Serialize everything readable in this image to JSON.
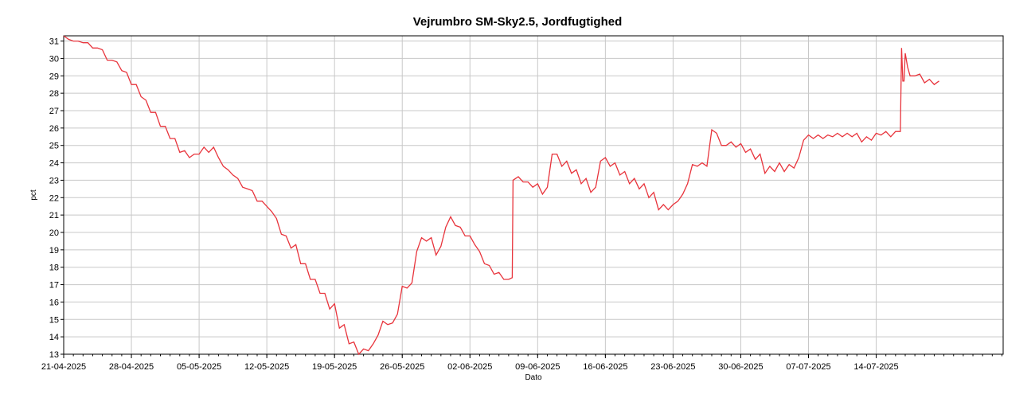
{
  "chart_data": {
    "type": "line",
    "title": "Vejrumbro SM-Sky2.5, Jordfugtighed",
    "xlabel": "Dato",
    "ylabel": "pct",
    "x_ticks": [
      "21-04-2025",
      "28-04-2025",
      "05-05-2025",
      "12-05-2025",
      "19-05-2025",
      "26-05-2025",
      "02-06-2025",
      "09-06-2025",
      "16-06-2025",
      "23-06-2025",
      "30-06-2025",
      "07-07-2025",
      "14-07-2025"
    ],
    "xlim": [
      "2025-04-21",
      "2025-07-27T03:00"
    ],
    "ylim": [
      13,
      31.3
    ],
    "y_ticks": [
      13,
      14,
      15,
      16,
      17,
      18,
      19,
      20,
      21,
      22,
      23,
      24,
      25,
      26,
      27,
      28,
      29,
      30,
      31
    ],
    "grid": true,
    "line_color": "#e8343c",
    "series": [
      {
        "points": [
          [
            "2025-04-21",
            31.3
          ],
          [
            "2025-04-21T12:00",
            31.1
          ],
          [
            "2025-04-22",
            31.0
          ],
          [
            "2025-04-22T12:00",
            31.0
          ],
          [
            "2025-04-23",
            30.9
          ],
          [
            "2025-04-23T12:00",
            30.9
          ],
          [
            "2025-04-24",
            30.6
          ],
          [
            "2025-04-24T12:00",
            30.6
          ],
          [
            "2025-04-25",
            30.5
          ],
          [
            "2025-04-25T12:00",
            29.9
          ],
          [
            "2025-04-26",
            29.9
          ],
          [
            "2025-04-26T12:00",
            29.8
          ],
          [
            "2025-04-27",
            29.3
          ],
          [
            "2025-04-27T12:00",
            29.2
          ],
          [
            "2025-04-28",
            28.5
          ],
          [
            "2025-04-28T12:00",
            28.5
          ],
          [
            "2025-04-29",
            27.8
          ],
          [
            "2025-04-29T12:00",
            27.6
          ],
          [
            "2025-04-30",
            26.9
          ],
          [
            "2025-04-30T12:00",
            26.9
          ],
          [
            "2025-05-01",
            26.1
          ],
          [
            "2025-05-01T12:00",
            26.1
          ],
          [
            "2025-05-02",
            25.4
          ],
          [
            "2025-05-02T12:00",
            25.4
          ],
          [
            "2025-05-03",
            24.6
          ],
          [
            "2025-05-03T12:00",
            24.7
          ],
          [
            "2025-05-04",
            24.3
          ],
          [
            "2025-05-04T12:00",
            24.5
          ],
          [
            "2025-05-05",
            24.5
          ],
          [
            "2025-05-05T12:00",
            24.9
          ],
          [
            "2025-05-06",
            24.6
          ],
          [
            "2025-05-06T12:00",
            24.9
          ],
          [
            "2025-05-07",
            24.3
          ],
          [
            "2025-05-07T12:00",
            23.8
          ],
          [
            "2025-05-08",
            23.6
          ],
          [
            "2025-05-08T12:00",
            23.3
          ],
          [
            "2025-05-09",
            23.1
          ],
          [
            "2025-05-09T12:00",
            22.6
          ],
          [
            "2025-05-10",
            22.5
          ],
          [
            "2025-05-10T12:00",
            22.4
          ],
          [
            "2025-05-11",
            21.8
          ],
          [
            "2025-05-11T12:00",
            21.8
          ],
          [
            "2025-05-12",
            21.5
          ],
          [
            "2025-05-12T12:00",
            21.2
          ],
          [
            "2025-05-13",
            20.8
          ],
          [
            "2025-05-13T12:00",
            19.9
          ],
          [
            "2025-05-14",
            19.8
          ],
          [
            "2025-05-14T12:00",
            19.1
          ],
          [
            "2025-05-15",
            19.3
          ],
          [
            "2025-05-15T12:00",
            18.2
          ],
          [
            "2025-05-16",
            18.2
          ],
          [
            "2025-05-16T12:00",
            17.3
          ],
          [
            "2025-05-17",
            17.3
          ],
          [
            "2025-05-17T12:00",
            16.5
          ],
          [
            "2025-05-18",
            16.5
          ],
          [
            "2025-05-18T12:00",
            15.6
          ],
          [
            "2025-05-19",
            15.9
          ],
          [
            "2025-05-19T12:00",
            14.5
          ],
          [
            "2025-05-20",
            14.7
          ],
          [
            "2025-05-20T12:00",
            13.6
          ],
          [
            "2025-05-21",
            13.7
          ],
          [
            "2025-05-21T12:00",
            13.0
          ],
          [
            "2025-05-22",
            13.3
          ],
          [
            "2025-05-22T12:00",
            13.2
          ],
          [
            "2025-05-23",
            13.6
          ],
          [
            "2025-05-23T12:00",
            14.1
          ],
          [
            "2025-05-24",
            14.9
          ],
          [
            "2025-05-24T12:00",
            14.7
          ],
          [
            "2025-05-25",
            14.8
          ],
          [
            "2025-05-25T12:00",
            15.3
          ],
          [
            "2025-05-26",
            16.9
          ],
          [
            "2025-05-26T12:00",
            16.8
          ],
          [
            "2025-05-27",
            17.1
          ],
          [
            "2025-05-27T12:00",
            18.9
          ],
          [
            "2025-05-28",
            19.7
          ],
          [
            "2025-05-28T12:00",
            19.5
          ],
          [
            "2025-05-29",
            19.7
          ],
          [
            "2025-05-29T12:00",
            18.7
          ],
          [
            "2025-05-30",
            19.2
          ],
          [
            "2025-05-30T12:00",
            20.3
          ],
          [
            "2025-05-31",
            20.9
          ],
          [
            "2025-05-31T12:00",
            20.4
          ],
          [
            "2025-06-01",
            20.3
          ],
          [
            "2025-06-01T12:00",
            19.8
          ],
          [
            "2025-06-02",
            19.8
          ],
          [
            "2025-06-02T12:00",
            19.3
          ],
          [
            "2025-06-03",
            18.9
          ],
          [
            "2025-06-03T12:00",
            18.2
          ],
          [
            "2025-06-04",
            18.1
          ],
          [
            "2025-06-04T12:00",
            17.6
          ],
          [
            "2025-06-05",
            17.7
          ],
          [
            "2025-06-05T12:00",
            17.3
          ],
          [
            "2025-06-06",
            17.3
          ],
          [
            "2025-06-06T09:00",
            17.4
          ],
          [
            "2025-06-06T11:00",
            23.0
          ],
          [
            "2025-06-07",
            23.2
          ],
          [
            "2025-06-07T12:00",
            22.9
          ],
          [
            "2025-06-08",
            22.9
          ],
          [
            "2025-06-08T12:00",
            22.6
          ],
          [
            "2025-06-09",
            22.8
          ],
          [
            "2025-06-09T12:00",
            22.2
          ],
          [
            "2025-06-10",
            22.6
          ],
          [
            "2025-06-10T12:00",
            24.5
          ],
          [
            "2025-06-11",
            24.5
          ],
          [
            "2025-06-11T12:00",
            23.8
          ],
          [
            "2025-06-12",
            24.1
          ],
          [
            "2025-06-12T12:00",
            23.4
          ],
          [
            "2025-06-13",
            23.6
          ],
          [
            "2025-06-13T12:00",
            22.8
          ],
          [
            "2025-06-14",
            23.1
          ],
          [
            "2025-06-14T12:00",
            22.3
          ],
          [
            "2025-06-15",
            22.6
          ],
          [
            "2025-06-15T12:00",
            24.1
          ],
          [
            "2025-06-16",
            24.3
          ],
          [
            "2025-06-16T12:00",
            23.8
          ],
          [
            "2025-06-17",
            24.0
          ],
          [
            "2025-06-17T12:00",
            23.3
          ],
          [
            "2025-06-18",
            23.5
          ],
          [
            "2025-06-18T12:00",
            22.8
          ],
          [
            "2025-06-19",
            23.1
          ],
          [
            "2025-06-19T12:00",
            22.5
          ],
          [
            "2025-06-20",
            22.8
          ],
          [
            "2025-06-20T12:00",
            22.0
          ],
          [
            "2025-06-21",
            22.3
          ],
          [
            "2025-06-21T12:00",
            21.3
          ],
          [
            "2025-06-22",
            21.6
          ],
          [
            "2025-06-22T12:00",
            21.3
          ],
          [
            "2025-06-23",
            21.6
          ],
          [
            "2025-06-23T12:00",
            21.8
          ],
          [
            "2025-06-24",
            22.2
          ],
          [
            "2025-06-24T12:00",
            22.8
          ],
          [
            "2025-06-25",
            23.9
          ],
          [
            "2025-06-25T12:00",
            23.8
          ],
          [
            "2025-06-26",
            24.0
          ],
          [
            "2025-06-26T12:00",
            23.8
          ],
          [
            "2025-06-27",
            25.9
          ],
          [
            "2025-06-27T12:00",
            25.7
          ],
          [
            "2025-06-28",
            25.0
          ],
          [
            "2025-06-28T12:00",
            25.0
          ],
          [
            "2025-06-29",
            25.2
          ],
          [
            "2025-06-29T12:00",
            24.9
          ],
          [
            "2025-06-30",
            25.1
          ],
          [
            "2025-06-30T12:00",
            24.6
          ],
          [
            "2025-07-01",
            24.8
          ],
          [
            "2025-07-01T12:00",
            24.2
          ],
          [
            "2025-07-02",
            24.5
          ],
          [
            "2025-07-02T12:00",
            23.4
          ],
          [
            "2025-07-03",
            23.8
          ],
          [
            "2025-07-03T12:00",
            23.5
          ],
          [
            "2025-07-04",
            24.0
          ],
          [
            "2025-07-04T12:00",
            23.5
          ],
          [
            "2025-07-05",
            23.9
          ],
          [
            "2025-07-05T12:00",
            23.7
          ],
          [
            "2025-07-06",
            24.3
          ],
          [
            "2025-07-06T12:00",
            25.3
          ],
          [
            "2025-07-07",
            25.6
          ],
          [
            "2025-07-07T12:00",
            25.4
          ],
          [
            "2025-07-08",
            25.6
          ],
          [
            "2025-07-08T12:00",
            25.4
          ],
          [
            "2025-07-09",
            25.6
          ],
          [
            "2025-07-09T12:00",
            25.5
          ],
          [
            "2025-07-10",
            25.7
          ],
          [
            "2025-07-10T12:00",
            25.5
          ],
          [
            "2025-07-11",
            25.7
          ],
          [
            "2025-07-11T12:00",
            25.5
          ],
          [
            "2025-07-12",
            25.7
          ],
          [
            "2025-07-12T12:00",
            25.2
          ],
          [
            "2025-07-13",
            25.5
          ],
          [
            "2025-07-13T12:00",
            25.3
          ],
          [
            "2025-07-14",
            25.7
          ],
          [
            "2025-07-14T12:00",
            25.6
          ],
          [
            "2025-07-15",
            25.8
          ],
          [
            "2025-07-15T12:00",
            25.5
          ],
          [
            "2025-07-16",
            25.8
          ],
          [
            "2025-07-16T12:00",
            25.8
          ],
          [
            "2025-07-16T15:00",
            30.6
          ],
          [
            "2025-07-16T18:00",
            28.7
          ],
          [
            "2025-07-16T21:00",
            28.7
          ],
          [
            "2025-07-17",
            30.3
          ],
          [
            "2025-07-17T06:00",
            29.5
          ],
          [
            "2025-07-17T12:00",
            29.0
          ],
          [
            "2025-07-18",
            29.0
          ],
          [
            "2025-07-18T12:00",
            29.1
          ],
          [
            "2025-07-19",
            28.6
          ],
          [
            "2025-07-19T12:00",
            28.8
          ],
          [
            "2025-07-20",
            28.5
          ],
          [
            "2025-07-20T12:00",
            28.7
          ]
        ]
      }
    ]
  }
}
